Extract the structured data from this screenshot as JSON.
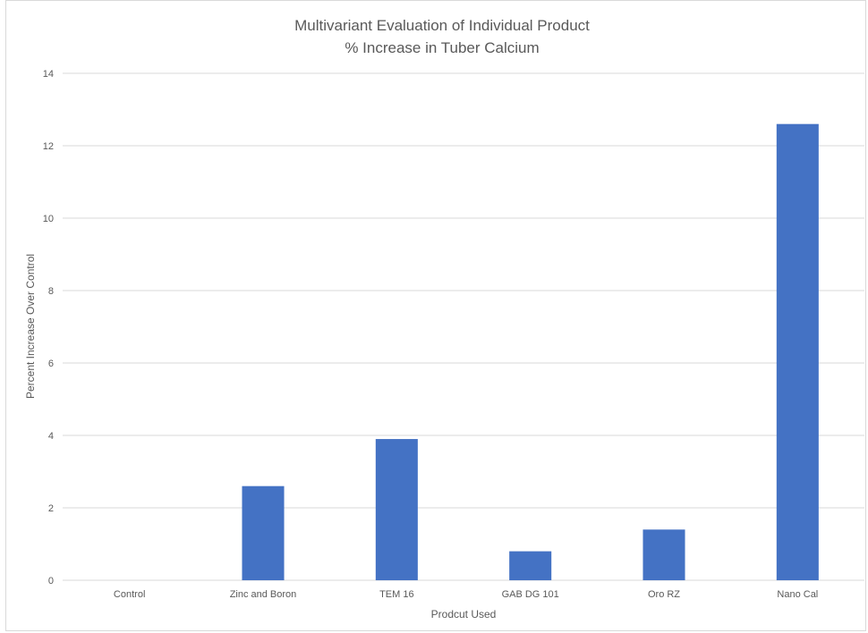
{
  "chart_data": {
    "type": "bar",
    "title": "Multivariant Evaluation of Individual Product",
    "subtitle": "% Increase in Tuber Calcium",
    "xlabel": "Prodcut Used",
    "ylabel": "Percent Increase Over Control",
    "categories": [
      "Control",
      "Zinc and Boron",
      "TEM 16",
      "GAB DG 101",
      "Oro RZ",
      "Nano Cal"
    ],
    "values": [
      0,
      2.6,
      3.9,
      0.8,
      1.4,
      12.6
    ],
    "ylim": [
      0,
      14
    ],
    "yticks": [
      0,
      2,
      4,
      6,
      8,
      10,
      12,
      14
    ],
    "grid": true,
    "legend": "none",
    "bar_color": "#4472C4"
  }
}
